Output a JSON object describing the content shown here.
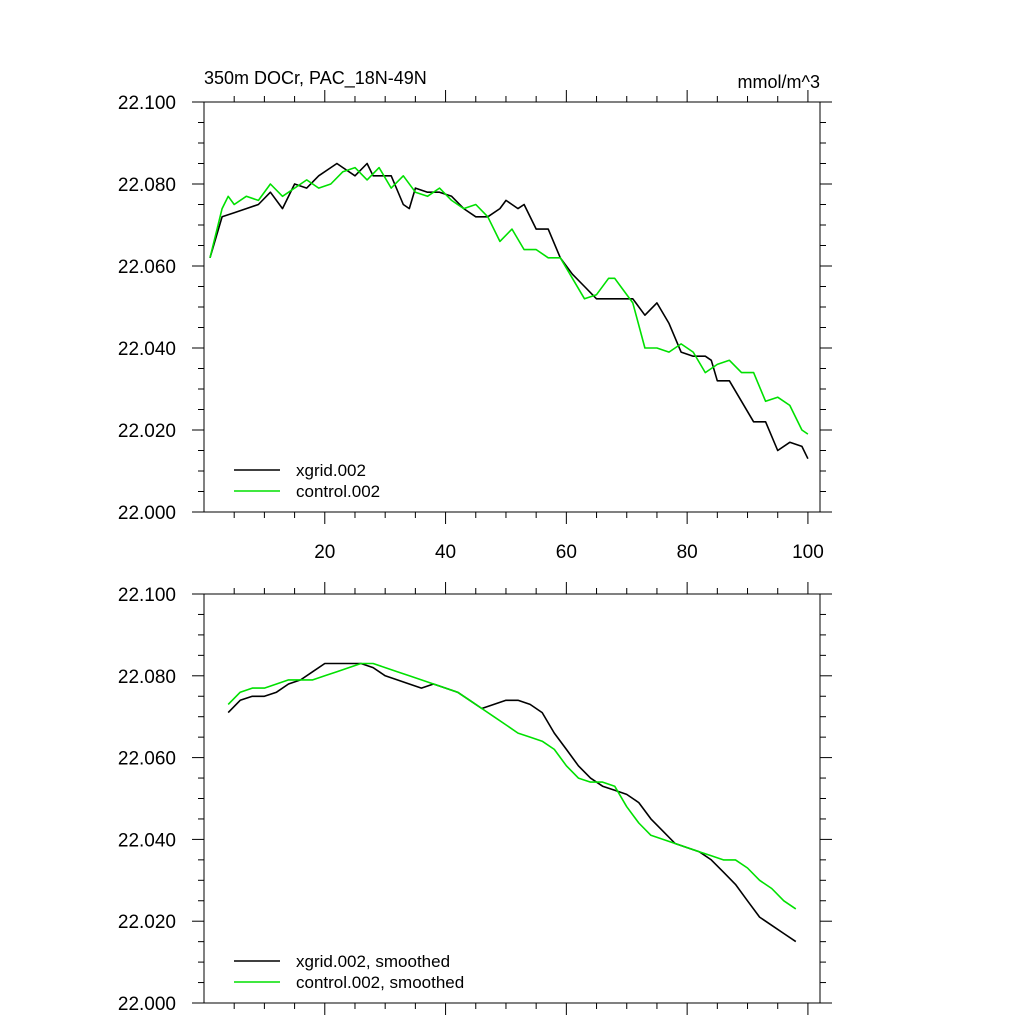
{
  "chart_data": [
    {
      "type": "line",
      "title": "350m DOCr, PAC_18N-49N",
      "units": "mmol/m^3",
      "xlim": [
        0,
        102
      ],
      "ylim": [
        22.0,
        22.1
      ],
      "x_ticks": [
        20,
        40,
        60,
        80,
        100
      ],
      "y_ticks": [
        "22.000",
        "22.020",
        "22.040",
        "22.060",
        "22.080",
        "22.100"
      ],
      "show_x_tick_labels": true,
      "legend_position": "bottom-left",
      "series": [
        {
          "name": "xgrid.002",
          "color": "#000000",
          "x": [
            1,
            3,
            5,
            7,
            9,
            11,
            13,
            15,
            17,
            19,
            21,
            22,
            23,
            25,
            27,
            28,
            29,
            31,
            33,
            34,
            35,
            37,
            39,
            41,
            43,
            45,
            47,
            49,
            50,
            51,
            52,
            53,
            55,
            57,
            59,
            61,
            63,
            65,
            67,
            69,
            71,
            73,
            75,
            77,
            79,
            81,
            83,
            84,
            85,
            87,
            89,
            91,
            93,
            95,
            97,
            99,
            100
          ],
          "y": [
            22.062,
            22.072,
            22.073,
            22.074,
            22.075,
            22.078,
            22.074,
            22.08,
            22.079,
            22.082,
            22.084,
            22.085,
            22.084,
            22.082,
            22.085,
            22.082,
            22.082,
            22.082,
            22.075,
            22.074,
            22.079,
            22.078,
            22.078,
            22.077,
            22.074,
            22.072,
            22.072,
            22.074,
            22.076,
            22.075,
            22.074,
            22.075,
            22.069,
            22.069,
            22.062,
            22.058,
            22.055,
            22.052,
            22.052,
            22.052,
            22.052,
            22.048,
            22.051,
            22.046,
            22.039,
            22.038,
            22.038,
            22.037,
            22.032,
            22.032,
            22.027,
            22.022,
            22.022,
            22.015,
            22.017,
            22.016,
            22.013
          ]
        },
        {
          "name": "control.002",
          "color": "#00e000",
          "x": [
            1,
            3,
            4,
            5,
            7,
            9,
            11,
            13,
            15,
            17,
            19,
            21,
            23,
            25,
            27,
            29,
            31,
            33,
            35,
            37,
            39,
            41,
            43,
            45,
            47,
            49,
            51,
            53,
            55,
            57,
            59,
            61,
            63,
            65,
            67,
            68,
            69,
            71,
            73,
            75,
            77,
            79,
            81,
            83,
            85,
            87,
            89,
            91,
            93,
            95,
            97,
            99,
            100
          ],
          "y": [
            22.062,
            22.074,
            22.077,
            22.075,
            22.077,
            22.076,
            22.08,
            22.077,
            22.079,
            22.081,
            22.079,
            22.08,
            22.083,
            22.084,
            22.081,
            22.084,
            22.079,
            22.082,
            22.078,
            22.077,
            22.079,
            22.076,
            22.074,
            22.075,
            22.072,
            22.066,
            22.069,
            22.064,
            22.064,
            22.062,
            22.062,
            22.057,
            22.052,
            22.053,
            22.057,
            22.057,
            22.055,
            22.051,
            22.04,
            22.04,
            22.039,
            22.041,
            22.039,
            22.034,
            22.036,
            22.037,
            22.034,
            22.034,
            22.027,
            22.028,
            22.026,
            22.02,
            22.019
          ]
        }
      ]
    },
    {
      "type": "line",
      "title": "",
      "units": "",
      "xlim": [
        0,
        102
      ],
      "ylim": [
        22.0,
        22.1
      ],
      "x_ticks": [
        20,
        40,
        60,
        80,
        100
      ],
      "y_ticks": [
        "22.000",
        "22.020",
        "22.040",
        "22.060",
        "22.080",
        "22.100"
      ],
      "show_x_tick_labels": false,
      "legend_position": "bottom-left",
      "series": [
        {
          "name": "xgrid.002, smoothed",
          "color": "#000000",
          "x": [
            4,
            6,
            8,
            10,
            12,
            14,
            16,
            18,
            20,
            22,
            24,
            26,
            28,
            30,
            32,
            34,
            36,
            38,
            40,
            42,
            44,
            46,
            48,
            50,
            52,
            54,
            56,
            58,
            60,
            62,
            64,
            66,
            68,
            70,
            72,
            74,
            76,
            78,
            80,
            82,
            84,
            86,
            88,
            90,
            92,
            94,
            96,
            98
          ],
          "y": [
            22.071,
            22.074,
            22.075,
            22.075,
            22.076,
            22.078,
            22.079,
            22.081,
            22.083,
            22.083,
            22.083,
            22.083,
            22.082,
            22.08,
            22.079,
            22.078,
            22.077,
            22.078,
            22.077,
            22.076,
            22.074,
            22.072,
            22.073,
            22.074,
            22.074,
            22.073,
            22.071,
            22.066,
            22.062,
            22.058,
            22.055,
            22.053,
            22.052,
            22.051,
            22.049,
            22.045,
            22.042,
            22.039,
            22.038,
            22.037,
            22.035,
            22.032,
            22.029,
            22.025,
            22.021,
            22.019,
            22.017,
            22.015
          ]
        },
        {
          "name": "control.002, smoothed",
          "color": "#00e000",
          "x": [
            4,
            6,
            8,
            10,
            12,
            14,
            16,
            18,
            20,
            22,
            24,
            26,
            28,
            30,
            32,
            34,
            36,
            38,
            40,
            42,
            44,
            46,
            48,
            50,
            52,
            54,
            56,
            58,
            60,
            62,
            64,
            66,
            68,
            70,
            72,
            74,
            76,
            78,
            80,
            82,
            84,
            86,
            88,
            90,
            92,
            94,
            96,
            98
          ],
          "y": [
            22.073,
            22.076,
            22.077,
            22.077,
            22.078,
            22.079,
            22.079,
            22.079,
            22.08,
            22.081,
            22.082,
            22.083,
            22.083,
            22.082,
            22.081,
            22.08,
            22.079,
            22.078,
            22.077,
            22.076,
            22.074,
            22.072,
            22.07,
            22.068,
            22.066,
            22.065,
            22.064,
            22.062,
            22.058,
            22.055,
            22.054,
            22.054,
            22.053,
            22.048,
            22.044,
            22.041,
            22.04,
            22.039,
            22.038,
            22.037,
            22.036,
            22.035,
            22.035,
            22.033,
            22.03,
            22.028,
            22.025,
            22.023
          ]
        }
      ]
    }
  ]
}
